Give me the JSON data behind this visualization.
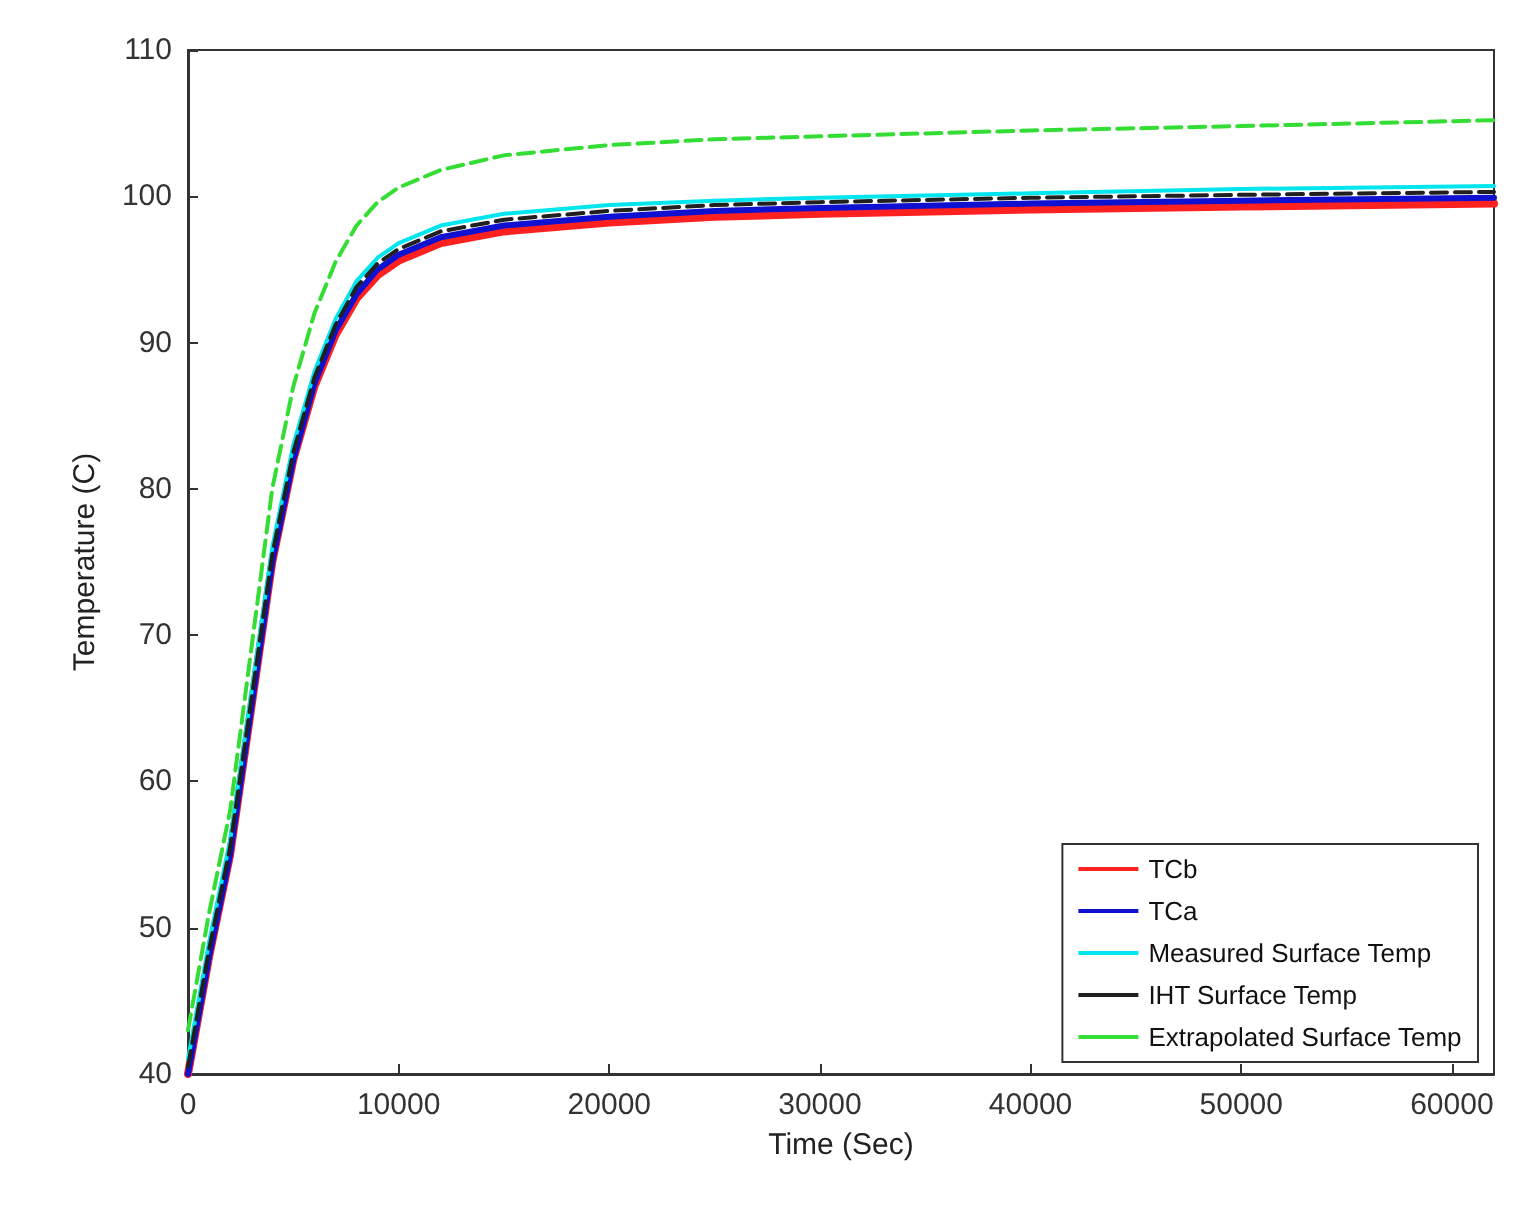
{
  "chart_data": {
    "type": "line",
    "xlabel": "Time (Sec)",
    "ylabel": "Temperature (C)",
    "xlim": [
      0,
      62000
    ],
    "ylim": [
      40,
      110
    ],
    "xticks": [
      0,
      10000,
      20000,
      30000,
      40000,
      50000,
      60000
    ],
    "yticks": [
      40,
      50,
      60,
      70,
      80,
      90,
      100,
      110
    ],
    "grid": false,
    "legend": "bottom right",
    "marker": "none",
    "x": [
      0,
      1000,
      2000,
      3000,
      4000,
      5000,
      6000,
      7000,
      8000,
      9000,
      10000,
      12000,
      15000,
      20000,
      25000,
      30000,
      40000,
      50000,
      62000
    ],
    "series": [
      {
        "name": "TCb",
        "color": "#ff2020",
        "line_style": "solid",
        "values": [
          40,
          48,
          55,
          65,
          75,
          82,
          87,
          90.5,
          93,
          94.6,
          95.6,
          96.8,
          97.6,
          98.2,
          98.6,
          98.8,
          99.1,
          99.3,
          99.5
        ]
      },
      {
        "name": "TCa",
        "color": "#1010d0",
        "line_style": "solid",
        "values": [
          40,
          48,
          55,
          65,
          75,
          82,
          87.2,
          90.8,
          93.3,
          95,
          96,
          97.2,
          98,
          98.6,
          99,
          99.2,
          99.5,
          99.7,
          99.9
        ]
      },
      {
        "name": "Measured Surface Temp",
        "color": "#00e5ee",
        "line_style": "solid",
        "values": [
          41,
          49,
          56,
          66,
          76,
          83,
          88,
          91.6,
          94.2,
          95.8,
          96.8,
          98,
          98.8,
          99.4,
          99.7,
          99.9,
          100.2,
          100.5,
          100.7
        ]
      },
      {
        "name": "IHT Surface Temp",
        "color": "#202020",
        "line_style": "dashed",
        "values": [
          40.5,
          48.5,
          55.5,
          65.5,
          75.5,
          82.5,
          87.6,
          91.2,
          93.8,
          95.4,
          96.4,
          97.6,
          98.4,
          99,
          99.4,
          99.6,
          99.9,
          100.1,
          100.3
        ]
      },
      {
        "name": "Extrapolated Surface Temp",
        "color": "#33dd33",
        "line_style": "dashed",
        "values": [
          43,
          51,
          58,
          69,
          80,
          87,
          92,
          95.5,
          98,
          99.6,
          100.6,
          101.8,
          102.8,
          103.5,
          103.9,
          104.1,
          104.5,
          104.8,
          105.2
        ]
      }
    ]
  }
}
